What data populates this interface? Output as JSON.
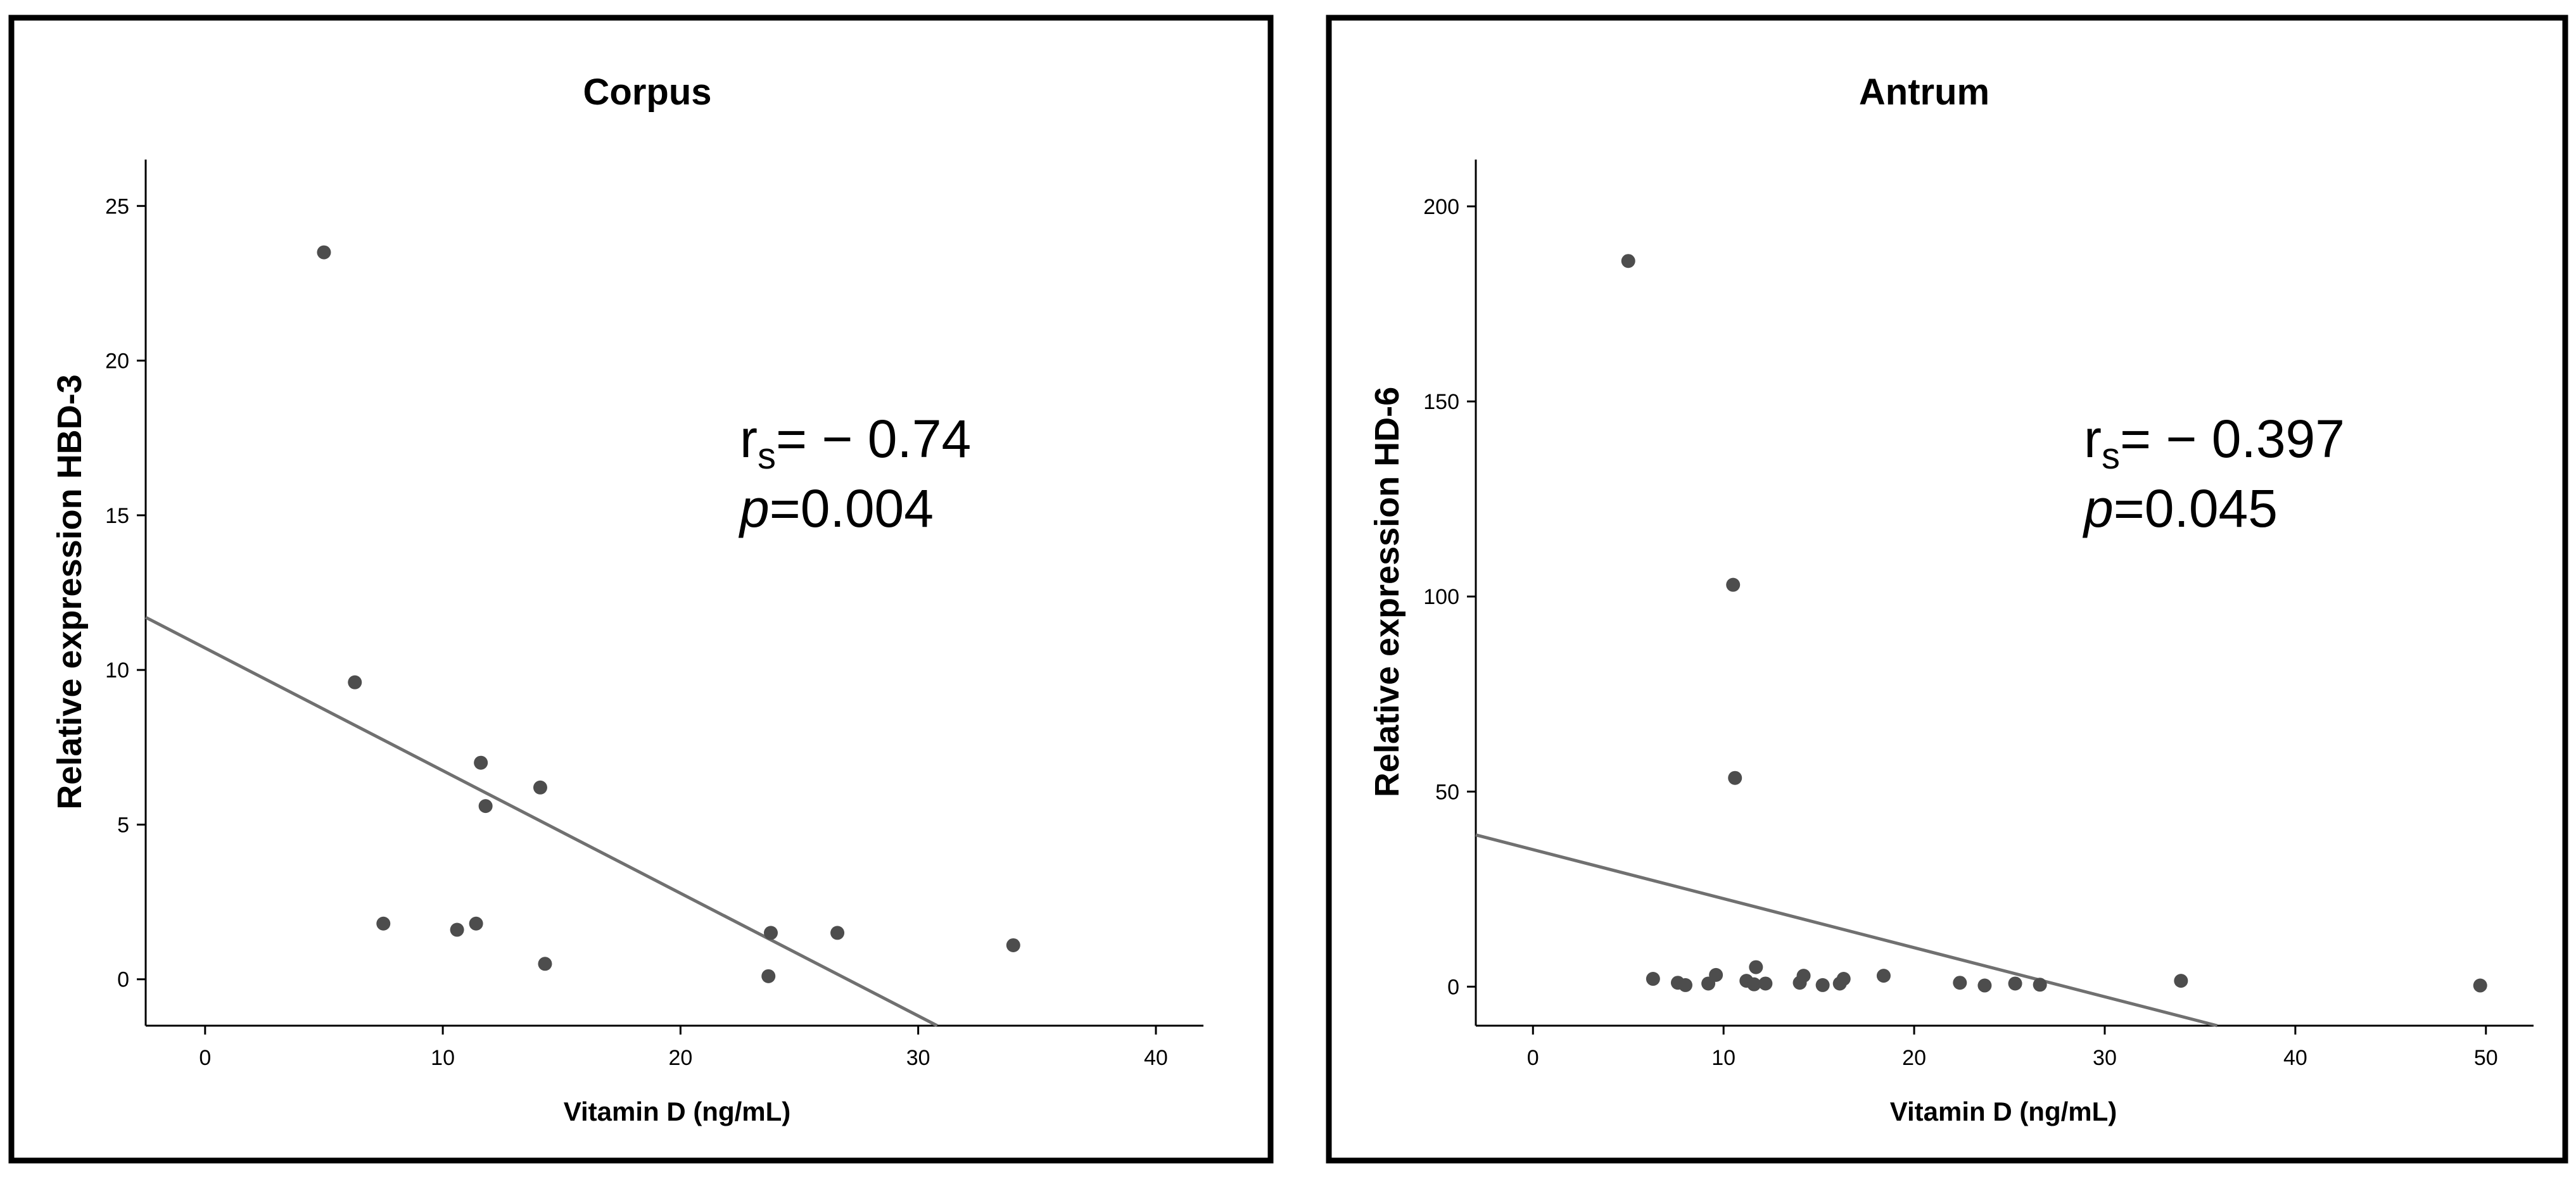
{
  "chart_data": [
    {
      "type": "scatter",
      "title": "Corpus",
      "xlabel": "Vitamin D (ng/mL)",
      "ylabel": "Relative expression HBD-3",
      "xlim": [
        -2.5,
        42
      ],
      "ylim": [
        -1.5,
        26.5
      ],
      "xticks": [
        0,
        10,
        20,
        30,
        40
      ],
      "yticks": [
        0,
        5,
        10,
        15,
        20,
        25
      ],
      "points": [
        {
          "x": 5.0,
          "y": 23.5
        },
        {
          "x": 6.3,
          "y": 9.6
        },
        {
          "x": 7.5,
          "y": 1.8
        },
        {
          "x": 10.6,
          "y": 1.6
        },
        {
          "x": 11.4,
          "y": 1.8
        },
        {
          "x": 11.6,
          "y": 7.0
        },
        {
          "x": 11.8,
          "y": 5.6
        },
        {
          "x": 14.1,
          "y": 6.2
        },
        {
          "x": 14.3,
          "y": 0.5
        },
        {
          "x": 23.8,
          "y": 1.5
        },
        {
          "x": 23.7,
          "y": 0.1
        },
        {
          "x": 26.6,
          "y": 1.5
        },
        {
          "x": 34.0,
          "y": 1.1
        }
      ],
      "fit_line": {
        "x": [
          -2.5,
          30.8
        ],
        "y": [
          11.7,
          -1.5
        ]
      },
      "annotation": {
        "rs_symbol": "r",
        "rs_subscript": "s",
        "rs_value": "= − 0.74",
        "p_symbol": "p",
        "p_value": "=0.004"
      }
    },
    {
      "type": "scatter",
      "title": "Antrum",
      "xlabel": "Vitamin D (ng/mL)",
      "ylabel": "Relative expression HD-6",
      "xlim": [
        -3,
        52.5
      ],
      "ylim": [
        -10,
        212
      ],
      "xticks": [
        0,
        10,
        20,
        30,
        40,
        50
      ],
      "yticks": [
        0,
        50,
        100,
        150,
        200
      ],
      "points": [
        {
          "x": 5.0,
          "y": 186
        },
        {
          "x": 10.5,
          "y": 103
        },
        {
          "x": 10.6,
          "y": 53.5
        },
        {
          "x": 6.3,
          "y": 2.0
        },
        {
          "x": 7.6,
          "y": 1.0
        },
        {
          "x": 8.0,
          "y": 0.4
        },
        {
          "x": 9.2,
          "y": 0.8
        },
        {
          "x": 9.6,
          "y": 3.0
        },
        {
          "x": 11.2,
          "y": 1.5
        },
        {
          "x": 11.7,
          "y": 5.0
        },
        {
          "x": 11.6,
          "y": 0.6
        },
        {
          "x": 12.2,
          "y": 0.8
        },
        {
          "x": 14.0,
          "y": 1.0
        },
        {
          "x": 14.2,
          "y": 2.8
        },
        {
          "x": 15.2,
          "y": 0.4
        },
        {
          "x": 16.1,
          "y": 0.8
        },
        {
          "x": 16.3,
          "y": 2.0
        },
        {
          "x": 18.4,
          "y": 2.8
        },
        {
          "x": 22.4,
          "y": 1.0
        },
        {
          "x": 23.7,
          "y": 0.3
        },
        {
          "x": 25.3,
          "y": 0.8
        },
        {
          "x": 26.6,
          "y": 0.5
        },
        {
          "x": 34.0,
          "y": 1.5
        },
        {
          "x": 49.7,
          "y": 0.3
        }
      ],
      "fit_line": {
        "x": [
          -3,
          35.9
        ],
        "y": [
          38.9,
          -10
        ]
      },
      "annotation": {
        "rs_symbol": "r",
        "rs_subscript": "s",
        "rs_value": "= − 0.397",
        "p_symbol": "p",
        "p_value": "=0.045"
      }
    }
  ]
}
